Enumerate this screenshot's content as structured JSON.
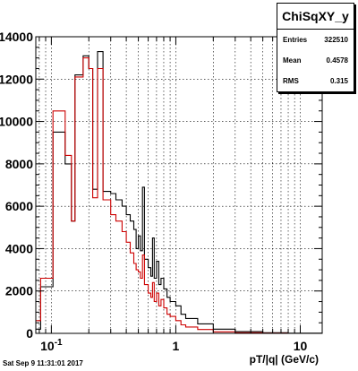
{
  "stats": {
    "title": "ChiSqXY_y",
    "rows": [
      {
        "label": "Entries",
        "value": "322510"
      },
      {
        "label": "Mean",
        "value": "0.4578"
      },
      {
        "label": "RMS",
        "value": "0.315"
      }
    ]
  },
  "footer": "Sat Sep  9 11:31:01 2017",
  "chart_data": {
    "type": "line",
    "xscale": "log",
    "xlabel": "pT/|q| (GeV/c)",
    "xlim": [
      0.075,
      15
    ],
    "ylim": [
      0,
      14000
    ],
    "grid": true,
    "x_ticks": [
      {
        "v": 0.1,
        "label": "10^-1"
      },
      {
        "v": 1,
        "label": "1"
      },
      {
        "v": 10,
        "label": "10"
      }
    ],
    "y_ticks": [
      {
        "v": 0,
        "label": "0"
      },
      {
        "v": 2000,
        "label": "2000"
      },
      {
        "v": 4000,
        "label": "4000"
      },
      {
        "v": 6000,
        "label": "6000"
      },
      {
        "v": 8000,
        "label": "8000"
      },
      {
        "v": 10000,
        "label": "10000"
      },
      {
        "v": 12000,
        "label": "12000"
      },
      {
        "v": 14000,
        "label": "14000"
      }
    ],
    "series": [
      {
        "color": "#000000",
        "points": [
          [
            0.075,
            200
          ],
          [
            0.082,
            200
          ],
          [
            0.082,
            2200
          ],
          [
            0.103,
            2200
          ],
          [
            0.103,
            9500
          ],
          [
            0.129,
            9500
          ],
          [
            0.129,
            8000
          ],
          [
            0.145,
            8000
          ],
          [
            0.145,
            5300
          ],
          [
            0.155,
            5300
          ],
          [
            0.155,
            12200
          ],
          [
            0.18,
            12200
          ],
          [
            0.18,
            13100
          ],
          [
            0.2,
            13100
          ],
          [
            0.2,
            12500
          ],
          [
            0.215,
            12500
          ],
          [
            0.215,
            6800
          ],
          [
            0.235,
            6800
          ],
          [
            0.235,
            13300
          ],
          [
            0.26,
            13300
          ],
          [
            0.26,
            6700
          ],
          [
            0.3,
            6600
          ],
          [
            0.33,
            6300
          ],
          [
            0.37,
            6000
          ],
          [
            0.4,
            5600
          ],
          [
            0.43,
            5300
          ],
          [
            0.46,
            4900
          ],
          [
            0.48,
            4000
          ],
          [
            0.5,
            4600
          ],
          [
            0.52,
            3900
          ],
          [
            0.54,
            6900
          ],
          [
            0.56,
            3500
          ],
          [
            0.6,
            3100
          ],
          [
            0.63,
            2700
          ],
          [
            0.65,
            4500
          ],
          [
            0.67,
            2600
          ],
          [
            0.7,
            3400
          ],
          [
            0.73,
            2300
          ],
          [
            0.76,
            2600
          ],
          [
            0.8,
            2100
          ],
          [
            0.85,
            1700
          ],
          [
            0.9,
            1500
          ],
          [
            1.0,
            1300
          ],
          [
            1.1,
            900
          ],
          [
            1.2,
            700
          ],
          [
            1.5,
            450
          ],
          [
            2,
            200
          ],
          [
            3,
            80
          ],
          [
            5,
            30
          ],
          [
            8,
            10
          ],
          [
            15,
            0
          ]
        ]
      },
      {
        "color": "#cc0000",
        "points": [
          [
            0.075,
            600
          ],
          [
            0.082,
            600
          ],
          [
            0.082,
            2600
          ],
          [
            0.103,
            2600
          ],
          [
            0.103,
            10500
          ],
          [
            0.129,
            10500
          ],
          [
            0.129,
            8400
          ],
          [
            0.145,
            8400
          ],
          [
            0.145,
            5300
          ],
          [
            0.155,
            5300
          ],
          [
            0.155,
            12100
          ],
          [
            0.18,
            12100
          ],
          [
            0.18,
            13000
          ],
          [
            0.2,
            13000
          ],
          [
            0.2,
            12500
          ],
          [
            0.215,
            12500
          ],
          [
            0.215,
            6400
          ],
          [
            0.235,
            6400
          ],
          [
            0.235,
            12500
          ],
          [
            0.26,
            12500
          ],
          [
            0.26,
            6300
          ],
          [
            0.3,
            5600
          ],
          [
            0.33,
            5300
          ],
          [
            0.37,
            4800
          ],
          [
            0.4,
            4300
          ],
          [
            0.43,
            3800
          ],
          [
            0.46,
            3300
          ],
          [
            0.48,
            3000
          ],
          [
            0.5,
            2900
          ],
          [
            0.52,
            2600
          ],
          [
            0.54,
            3700
          ],
          [
            0.56,
            2300
          ],
          [
            0.6,
            1900
          ],
          [
            0.63,
            1700
          ],
          [
            0.65,
            2400
          ],
          [
            0.67,
            1500
          ],
          [
            0.7,
            1900
          ],
          [
            0.73,
            1300
          ],
          [
            0.76,
            1600
          ],
          [
            0.8,
            1200
          ],
          [
            0.85,
            900
          ],
          [
            0.9,
            800
          ],
          [
            1.0,
            600
          ],
          [
            1.1,
            400
          ],
          [
            1.2,
            300
          ],
          [
            1.5,
            180
          ],
          [
            2,
            70
          ],
          [
            3,
            30
          ],
          [
            5,
            10
          ],
          [
            8,
            0
          ],
          [
            15,
            0
          ]
        ]
      }
    ]
  }
}
